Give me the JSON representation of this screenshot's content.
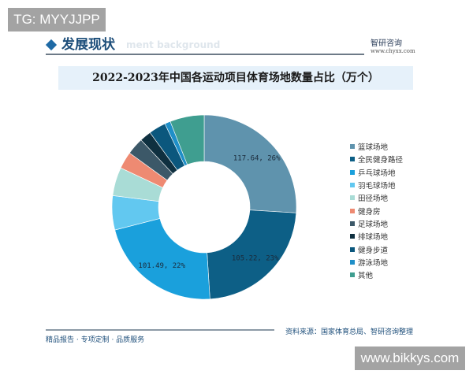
{
  "watermark_top": "TG: MYYJJPP",
  "watermark_bottom": "www.bikkys.com",
  "section_title": "发展现状",
  "section_ghost": "ment background",
  "brand": {
    "name": "智研咨询",
    "url": "www.chyxx.com"
  },
  "footer": {
    "slogan": "精品报告 · 专项定制 · 品质服务",
    "source": "资料来源：国家体育总局、智研咨询整理"
  },
  "chart_data": {
    "type": "pie",
    "donut": true,
    "title": "2022-2023年中国各运动项目体育场地数量占比（万个）",
    "legend_position": "right",
    "slices": [
      {
        "name": "篮球场地",
        "value": 117.64,
        "percent": 26,
        "label": "117.64, 26%",
        "color": "#5f93ad"
      },
      {
        "name": "全民健身路径",
        "value": 105.22,
        "percent": 23,
        "label": "105.22, 23%",
        "color": "#0d5f86"
      },
      {
        "name": "乒乓球场地",
        "value": 101.49,
        "percent": 22,
        "label": "101.49, 22%",
        "color": "#1aa0dc"
      },
      {
        "name": "羽毛球场地",
        "percent": 6,
        "color": "#62c8f0"
      },
      {
        "name": "田径场地",
        "percent": 5,
        "color": "#a9dcd6"
      },
      {
        "name": "健身房",
        "percent": 3,
        "color": "#ee8a72"
      },
      {
        "name": "足球场地",
        "percent": 3,
        "color": "#3c5868"
      },
      {
        "name": "排球场地",
        "percent": 2,
        "color": "#0f3040"
      },
      {
        "name": "健身步道",
        "percent": 3,
        "color": "#0b577d"
      },
      {
        "name": "游泳场地",
        "percent": 1,
        "color": "#1f8fc8"
      },
      {
        "name": "其他",
        "percent": 6,
        "color": "#3f9e90"
      }
    ]
  }
}
